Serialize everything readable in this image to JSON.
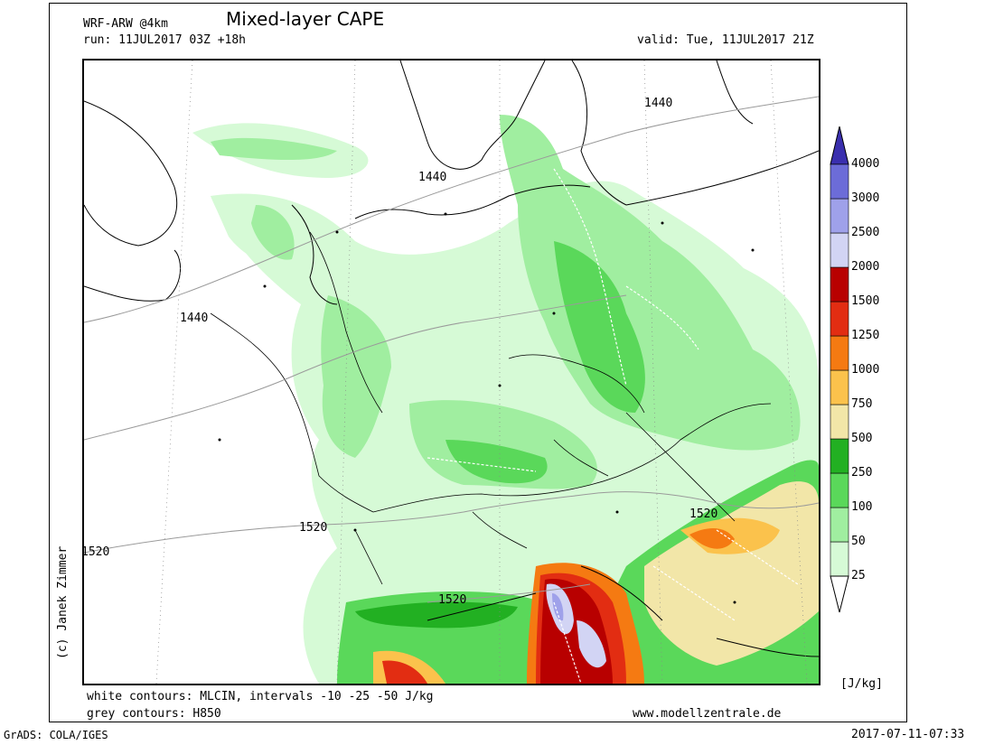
{
  "header": {
    "model": "WRF-ARW @4km",
    "title": "Mixed-layer CAPE",
    "run": "run: 11JUL2017 03Z +18h",
    "valid": "valid: Tue, 11JUL2017 21Z"
  },
  "footer": {
    "white_contours": "white contours: MLCIN, intervals -10 -25 -50 J/kg",
    "grey_contours": "grey contours: H850",
    "website": "www.modellzentrale.de",
    "grads": "GrADS: COLA/IGES",
    "timestamp": "2017-07-11-07:33"
  },
  "copyright": "(c) Janek Zimmer",
  "map": {
    "isohypse_labels": [
      "1440",
      "1440",
      "1440",
      "1520",
      "1520",
      "1520",
      "1520"
    ]
  },
  "colorbar": {
    "unit": "[J/kg]",
    "levels": [
      {
        "label": "25",
        "color": "#d6fad6"
      },
      {
        "label": "50",
        "color": "#a0eea0"
      },
      {
        "label": "100",
        "color": "#5ad85a"
      },
      {
        "label": "250",
        "color": "#22b022"
      },
      {
        "label": "500",
        "color": "#f2e6a8"
      },
      {
        "label": "750",
        "color": "#fbc24c"
      },
      {
        "label": "1000",
        "color": "#f57a12"
      },
      {
        "label": "1250",
        "color": "#e22d12"
      },
      {
        "label": "1500",
        "color": "#b80000"
      },
      {
        "label": "2000",
        "color": "#d2d4f4"
      },
      {
        "label": "2500",
        "color": "#9fa1ea"
      },
      {
        "label": "3000",
        "color": "#6c6cd8"
      },
      {
        "label": "4000",
        "color": "#3a2fae"
      }
    ]
  },
  "colors": {
    "light_green": "#d6fad6",
    "green": "#5ad85a",
    "dark_green": "#22b022",
    "yellow": "#f2e6a8",
    "orange": "#fbc24c",
    "dark_orange": "#f57a12",
    "red": "#e22d12",
    "dark_red": "#b80000",
    "lavender": "#d2d4f4",
    "blue": "#9fa1ea"
  }
}
